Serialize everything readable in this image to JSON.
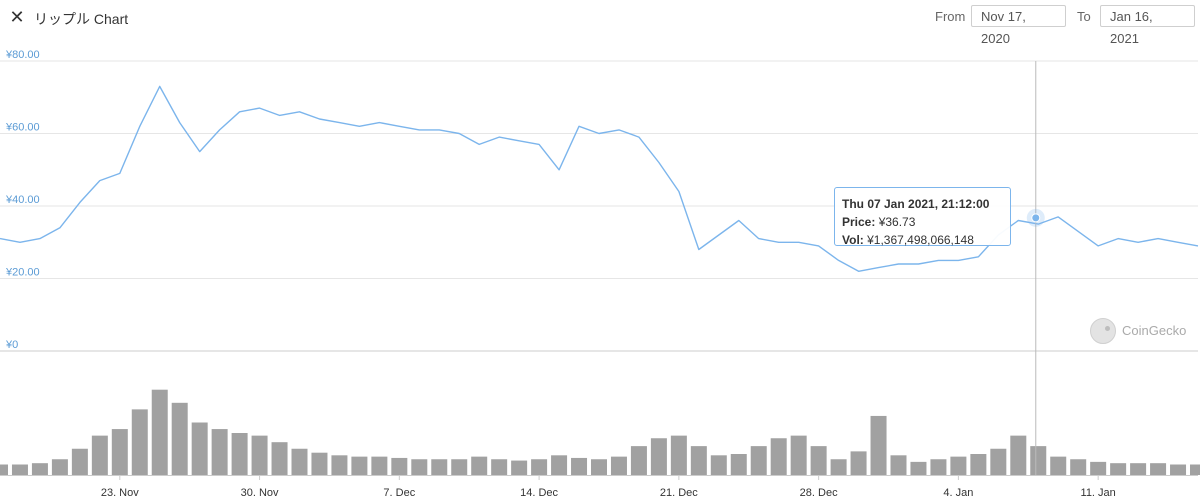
{
  "header": {
    "close_icon": "close-x-icon",
    "title": "リップル Chart",
    "from_label": "From",
    "from_value": "Nov 17, 2020",
    "to_label": "To",
    "to_value": "Jan 16, 2021"
  },
  "tooltip": {
    "header": "Thu 07 Jan 2021, 21:12:00",
    "price_label": "Price:",
    "price_value": "¥36.73",
    "vol_label": "Vol:",
    "vol_value": "¥1,367,498,066,148"
  },
  "watermark": {
    "text": "CoinGecko",
    "icon": "coingecko-logo-icon"
  },
  "colors": {
    "price_line": "#7cb5ec",
    "volume_bar": "#909090",
    "axis_label": "#5b9bd5",
    "grid": "#e6e6e6"
  },
  "chart_data": {
    "type": "line",
    "title": "",
    "xlabel": "",
    "ylabel": "",
    "currency": "JPY",
    "ylim": [
      0,
      80
    ],
    "y_ticks": [
      "¥0",
      "¥20.00",
      "¥40.00",
      "¥60.00",
      "¥80.00"
    ],
    "x_ticks": [
      "23. Nov",
      "30. Nov",
      "7. Dec",
      "14. Dec",
      "21. Dec",
      "28. Dec",
      "4. Jan",
      "11. Jan"
    ],
    "x_tick_dates": [
      "2020-11-23",
      "2020-11-30",
      "2020-12-07",
      "2020-12-14",
      "2020-12-21",
      "2020-12-28",
      "2021-01-04",
      "2021-01-11"
    ],
    "x_range": [
      "2020-11-17",
      "2021-01-16"
    ],
    "series": [
      {
        "kind": "price",
        "x": [
          "2020-11-17",
          "2020-11-18",
          "2020-11-19",
          "2020-11-20",
          "2020-11-21",
          "2020-11-22",
          "2020-11-23",
          "2020-11-24",
          "2020-11-25",
          "2020-11-26",
          "2020-11-27",
          "2020-11-28",
          "2020-11-29",
          "2020-11-30",
          "2020-12-01",
          "2020-12-02",
          "2020-12-03",
          "2020-12-04",
          "2020-12-05",
          "2020-12-06",
          "2020-12-07",
          "2020-12-08",
          "2020-12-09",
          "2020-12-10",
          "2020-12-11",
          "2020-12-12",
          "2020-12-13",
          "2020-12-14",
          "2020-12-15",
          "2020-12-16",
          "2020-12-17",
          "2020-12-18",
          "2020-12-19",
          "2020-12-20",
          "2020-12-21",
          "2020-12-22",
          "2020-12-23",
          "2020-12-24",
          "2020-12-25",
          "2020-12-26",
          "2020-12-27",
          "2020-12-28",
          "2020-12-29",
          "2020-12-30",
          "2020-12-31",
          "2021-01-01",
          "2021-01-02",
          "2021-01-03",
          "2021-01-04",
          "2021-01-05",
          "2021-01-06",
          "2021-01-07",
          "2021-01-08",
          "2021-01-09",
          "2021-01-10",
          "2021-01-11",
          "2021-01-12",
          "2021-01-13",
          "2021-01-14",
          "2021-01-15",
          "2021-01-16"
        ],
        "y": [
          31,
          30,
          31,
          34,
          41,
          47,
          49,
          62,
          73,
          63,
          55,
          61,
          66,
          67,
          65,
          66,
          64,
          63,
          62,
          63,
          62,
          61,
          61,
          60,
          57,
          59,
          58,
          57,
          50,
          62,
          60,
          61,
          59,
          52,
          44,
          28,
          32,
          36,
          31,
          30,
          30,
          29,
          25,
          22,
          23,
          24,
          24,
          25,
          25,
          26,
          32,
          36,
          35,
          37,
          33,
          29,
          31,
          30,
          31,
          30,
          29
        ]
      },
      {
        "kind": "volume",
        "x": [
          "2020-11-17",
          "2020-11-18",
          "2020-11-19",
          "2020-11-20",
          "2020-11-21",
          "2020-11-22",
          "2020-11-23",
          "2020-11-24",
          "2020-11-25",
          "2020-11-26",
          "2020-11-27",
          "2020-11-28",
          "2020-11-29",
          "2020-11-30",
          "2020-12-01",
          "2020-12-02",
          "2020-12-03",
          "2020-12-04",
          "2020-12-05",
          "2020-12-06",
          "2020-12-07",
          "2020-12-08",
          "2020-12-09",
          "2020-12-10",
          "2020-12-11",
          "2020-12-12",
          "2020-12-13",
          "2020-12-14",
          "2020-12-15",
          "2020-12-16",
          "2020-12-17",
          "2020-12-18",
          "2020-12-19",
          "2020-12-20",
          "2020-12-21",
          "2020-12-22",
          "2020-12-23",
          "2020-12-24",
          "2020-12-25",
          "2020-12-26",
          "2020-12-27",
          "2020-12-28",
          "2020-12-29",
          "2020-12-30",
          "2020-12-31",
          "2021-01-01",
          "2021-01-02",
          "2021-01-03",
          "2021-01-04",
          "2021-01-05",
          "2021-01-06",
          "2021-01-07",
          "2021-01-08",
          "2021-01-09",
          "2021-01-10",
          "2021-01-11",
          "2021-01-12",
          "2021-01-13",
          "2021-01-14",
          "2021-01-15",
          "2021-01-16"
        ],
        "y": [
          0.08,
          0.08,
          0.09,
          0.12,
          0.2,
          0.3,
          0.35,
          0.5,
          0.65,
          0.55,
          0.4,
          0.35,
          0.32,
          0.3,
          0.25,
          0.2,
          0.17,
          0.15,
          0.14,
          0.14,
          0.13,
          0.12,
          0.12,
          0.12,
          0.14,
          0.12,
          0.11,
          0.12,
          0.15,
          0.13,
          0.12,
          0.14,
          0.22,
          0.28,
          0.3,
          0.22,
          0.15,
          0.16,
          0.22,
          0.28,
          0.3,
          0.22,
          0.12,
          0.18,
          0.45,
          0.15,
          0.1,
          0.12,
          0.14,
          0.16,
          0.2,
          0.3,
          0.22,
          0.14,
          0.12,
          0.1,
          0.09,
          0.09,
          0.09,
          0.08,
          0.08
        ]
      }
    ],
    "tooltip_point": {
      "x": "2021-01-07",
      "y": 36.73
    },
    "grid": true,
    "legend": "none"
  }
}
